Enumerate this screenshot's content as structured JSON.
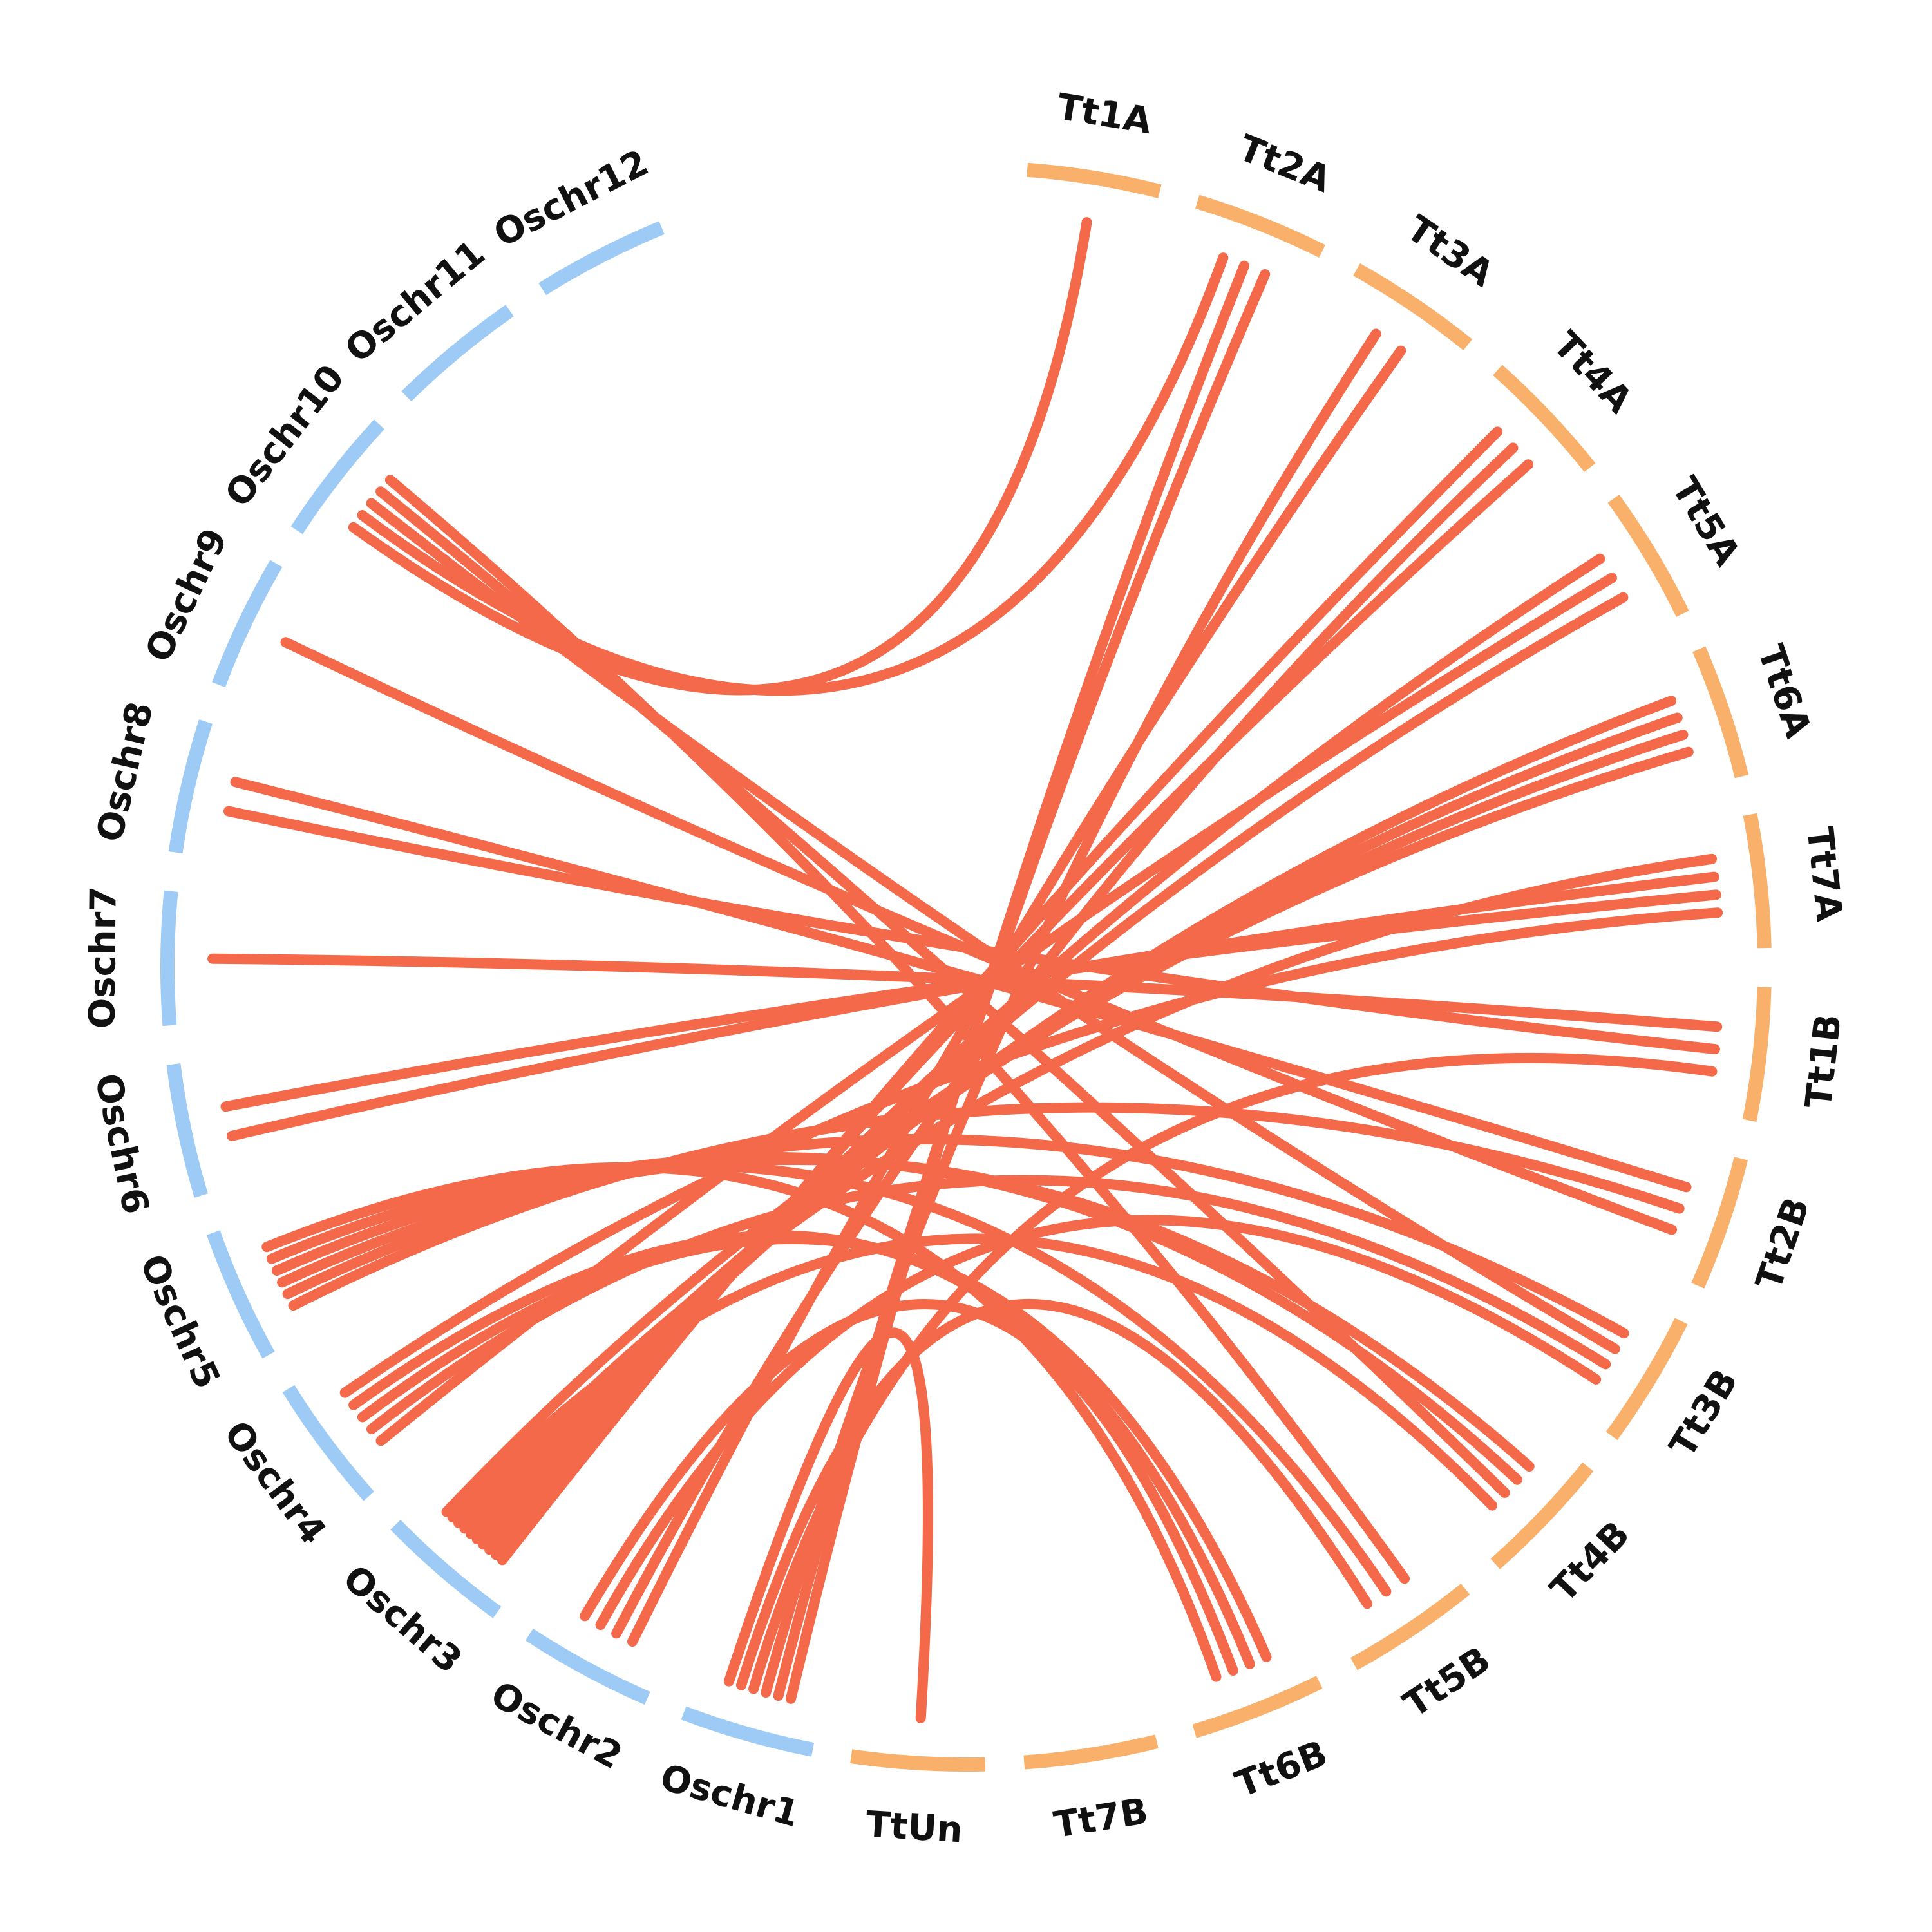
{
  "figure": {
    "colors": {
      "rice": "#9ecbf5",
      "wheat": "#f8b06a",
      "link": "#f4694a",
      "label": "#111111",
      "background": "#ffffff"
    },
    "chromosomes": [
      {
        "id": "Tt1A",
        "label": "Tt1A",
        "group": "wheat"
      },
      {
        "id": "Tt2A",
        "label": "Tt2A",
        "group": "wheat"
      },
      {
        "id": "Tt3A",
        "label": "Tt3A",
        "group": "wheat"
      },
      {
        "id": "Tt4A",
        "label": "Tt4A",
        "group": "wheat"
      },
      {
        "id": "Tt5A",
        "label": "Tt5A",
        "group": "wheat"
      },
      {
        "id": "Tt6A",
        "label": "Tt6A",
        "group": "wheat"
      },
      {
        "id": "Tt7A",
        "label": "Tt7A",
        "group": "wheat"
      },
      {
        "id": "Tt1B",
        "label": "Tt1B",
        "group": "wheat"
      },
      {
        "id": "Tt2B",
        "label": "Tt2B",
        "group": "wheat"
      },
      {
        "id": "Tt3B",
        "label": "Tt3B",
        "group": "wheat"
      },
      {
        "id": "Tt4B",
        "label": "Tt4B",
        "group": "wheat"
      },
      {
        "id": "Tt5B",
        "label": "Tt5B",
        "group": "wheat"
      },
      {
        "id": "Tt6B",
        "label": "Tt6B",
        "group": "wheat"
      },
      {
        "id": "Tt7B",
        "label": "Tt7B",
        "group": "wheat"
      },
      {
        "id": "TtUn",
        "label": "TtUn",
        "group": "wheat"
      },
      {
        "id": "Oschr1",
        "label": "Oschr1",
        "group": "rice"
      },
      {
        "id": "Oschr2",
        "label": "Oschr2",
        "group": "rice"
      },
      {
        "id": "Oschr3",
        "label": "Oschr3",
        "group": "rice"
      },
      {
        "id": "Oschr4",
        "label": "Oschr4",
        "group": "rice"
      },
      {
        "id": "Oschr5",
        "label": "Oschr5",
        "group": "rice"
      },
      {
        "id": "Oschr6",
        "label": "Oschr6",
        "group": "rice"
      },
      {
        "id": "Oschr7",
        "label": "Oschr7",
        "group": "rice"
      },
      {
        "id": "Oschr8",
        "label": "Oschr8",
        "group": "rice"
      },
      {
        "id": "Oschr9",
        "label": "Oschr9",
        "group": "rice"
      },
      {
        "id": "Oschr10",
        "label": "Oschr10",
        "group": "rice"
      },
      {
        "id": "Oschr11",
        "label": "Oschr11",
        "group": "rice"
      },
      {
        "id": "Oschr12",
        "label": "Oschr12",
        "group": "rice"
      }
    ],
    "links": [
      {
        "from": "Tt1A",
        "to": "Oschr10"
      },
      {
        "from": "Tt2A",
        "to": "Oschr10"
      },
      {
        "from": "Tt2A",
        "to": "Oschr1"
      },
      {
        "from": "Tt2A",
        "to": "Oschr1"
      },
      {
        "from": "Tt3A",
        "to": "Oschr1"
      },
      {
        "from": "Tt3A",
        "to": "Oschr2"
      },
      {
        "from": "Tt4A",
        "to": "Oschr3"
      },
      {
        "from": "Tt4A",
        "to": "Oschr2"
      },
      {
        "from": "Tt4A",
        "to": "Oschr3"
      },
      {
        "from": "Tt5A",
        "to": "Oschr3"
      },
      {
        "from": "Tt5A",
        "to": "Oschr4"
      },
      {
        "from": "Tt5A",
        "to": "Oschr3"
      },
      {
        "from": "Tt6A",
        "to": "Oschr3"
      },
      {
        "from": "Tt6A",
        "to": "Oschr3"
      },
      {
        "from": "Tt6A",
        "to": "Oschr3"
      },
      {
        "from": "Tt7A",
        "to": "Oschr3"
      },
      {
        "from": "Tt7A",
        "to": "Oschr6"
      },
      {
        "from": "Tt7A",
        "to": "Oschr6"
      },
      {
        "from": "Tt1B",
        "to": "Oschr7"
      },
      {
        "from": "Tt1B",
        "to": "Oschr8"
      },
      {
        "from": "Tt2B",
        "to": "Oschr8"
      },
      {
        "from": "Tt2B",
        "to": "Oschr5"
      },
      {
        "from": "Tt2B",
        "to": "Oschr9"
      },
      {
        "from": "Tt3B",
        "to": "Oschr5"
      },
      {
        "from": "Tt3B",
        "to": "Oschr10"
      },
      {
        "from": "Tt3B",
        "to": "Oschr4"
      },
      {
        "from": "Tt3B",
        "to": "Oschr2"
      },
      {
        "from": "Tt4B",
        "to": "Oschr5"
      },
      {
        "from": "Tt4B",
        "to": "Oschr5"
      },
      {
        "from": "Tt4B",
        "to": "Oschr10"
      },
      {
        "from": "Tt4B",
        "to": "Oschr3"
      },
      {
        "from": "Tt5B",
        "to": "Oschr10"
      },
      {
        "from": "Tt5B",
        "to": "Oschr5"
      },
      {
        "from": "Tt6B",
        "to": "Oschr4"
      },
      {
        "from": "Tt6B",
        "to": "Oschr4"
      },
      {
        "from": "Tt6B",
        "to": "Oschr2"
      },
      {
        "from": "Tt6B",
        "to": "Oschr5"
      },
      {
        "from": "Tt1B",
        "to": "Oschr1"
      },
      {
        "from": "Tt6A",
        "to": "Oschr3"
      },
      {
        "from": "Tt5B",
        "to": "Oschr1"
      },
      {
        "from": "TtUn",
        "to": "Oschr1"
      },
      {
        "from": "Tt7A",
        "to": "Oschr4"
      }
    ]
  }
}
